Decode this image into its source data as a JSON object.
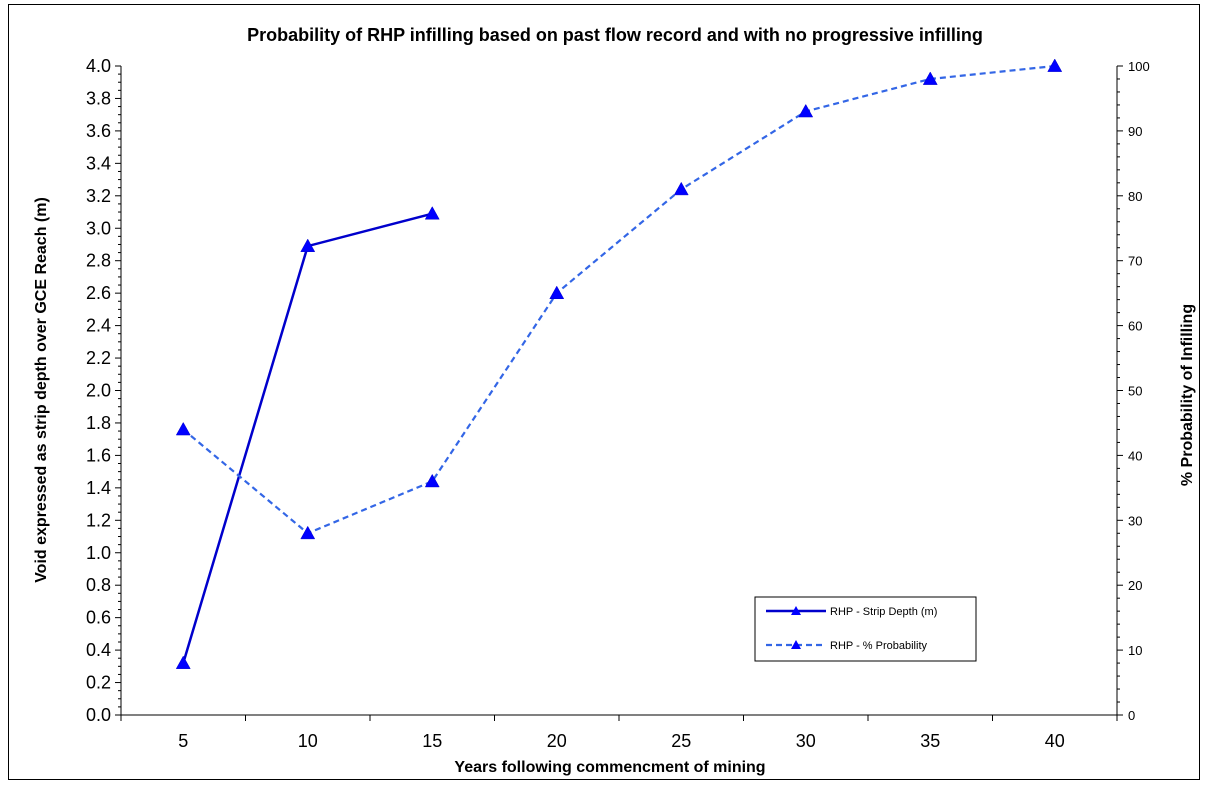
{
  "chart_data": {
    "type": "line",
    "title": "Probability of RHP infilling based on past flow record and with no progressive infilling",
    "xlabel": "Years following commencment of mining",
    "ylabel": "Void expressed as strip depth  over GCE Reach (m)",
    "y2label": "% Probability of Infilling",
    "categories": [
      "5",
      "10",
      "15",
      "20",
      "25",
      "30",
      "35",
      "40"
    ],
    "ylim": [
      0,
      4.0
    ],
    "y2lim": [
      0,
      100
    ],
    "yticks": [
      "0.0",
      "0.2",
      "0.4",
      "0.6",
      "0.8",
      "1.0",
      "1.2",
      "1.4",
      "1.6",
      "1.8",
      "2.0",
      "2.2",
      "2.4",
      "2.6",
      "2.8",
      "3.0",
      "3.2",
      "3.4",
      "3.6",
      "3.8",
      "4.0"
    ],
    "y2ticks": [
      "0",
      "10",
      "20",
      "30",
      "40",
      "50",
      "60",
      "70",
      "80",
      "90",
      "100"
    ],
    "grid": false,
    "legend_position": "lower-right",
    "series": [
      {
        "name": "RHP - Strip Depth (m)",
        "axis": "left",
        "style": "solid",
        "color": "#0000CC",
        "values": [
          0.32,
          2.89,
          3.09,
          null,
          null,
          null,
          null,
          null
        ]
      },
      {
        "name": "RHP - % Probability",
        "axis": "right",
        "style": "dashed",
        "color": "#3366E6",
        "values": [
          44,
          28,
          36,
          65,
          81,
          93,
          98,
          100
        ]
      }
    ]
  }
}
